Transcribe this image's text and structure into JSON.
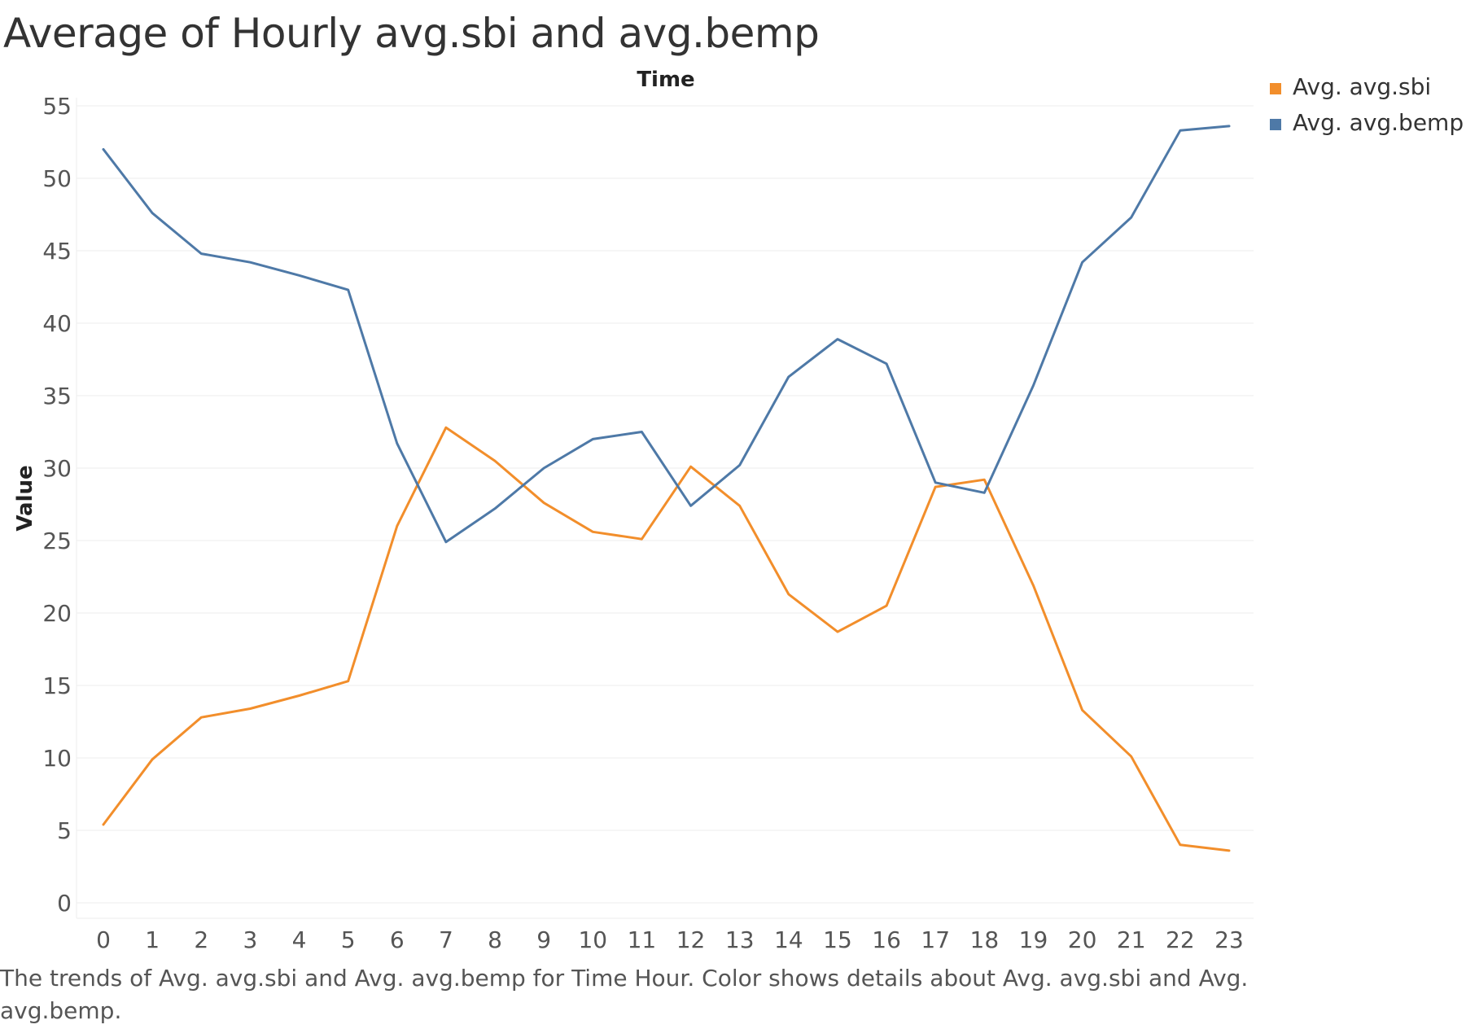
{
  "chart_data": {
    "type": "line",
    "title": "Average of Hourly avg.sbi and avg.bemp",
    "xlabel": "Time",
    "ylabel": "Value",
    "x": [
      0,
      1,
      2,
      3,
      4,
      5,
      6,
      7,
      8,
      9,
      10,
      11,
      12,
      13,
      14,
      15,
      16,
      17,
      18,
      19,
      20,
      21,
      22,
      23
    ],
    "yticks": [
      0,
      5,
      10,
      15,
      20,
      25,
      30,
      35,
      40,
      45,
      50,
      55
    ],
    "ylim": [
      -1,
      55
    ],
    "grid": true,
    "legend_position": "top-right",
    "series": [
      {
        "name": "Avg. avg.sbi",
        "color": "#F28E2B",
        "values": [
          5.4,
          9.9,
          12.8,
          13.4,
          14.3,
          15.3,
          26.0,
          32.8,
          30.5,
          27.6,
          25.6,
          25.1,
          30.1,
          27.4,
          21.3,
          18.7,
          20.5,
          28.7,
          29.2,
          21.9,
          13.3,
          10.1,
          4.0,
          3.6
        ]
      },
      {
        "name": "Avg. avg.bemp",
        "color": "#4E79A7",
        "values": [
          52.0,
          47.6,
          44.8,
          44.2,
          43.3,
          42.3,
          31.7,
          24.9,
          27.2,
          30.0,
          32.0,
          32.5,
          27.4,
          30.2,
          36.3,
          38.9,
          37.2,
          29.0,
          28.3,
          35.7,
          44.2,
          47.3,
          53.3,
          53.6
        ]
      }
    ]
  },
  "caption": "The trends of Avg. avg.sbi and Avg. avg.bemp for Time Hour.  Color shows details about Avg. avg.sbi and Avg. avg.bemp."
}
